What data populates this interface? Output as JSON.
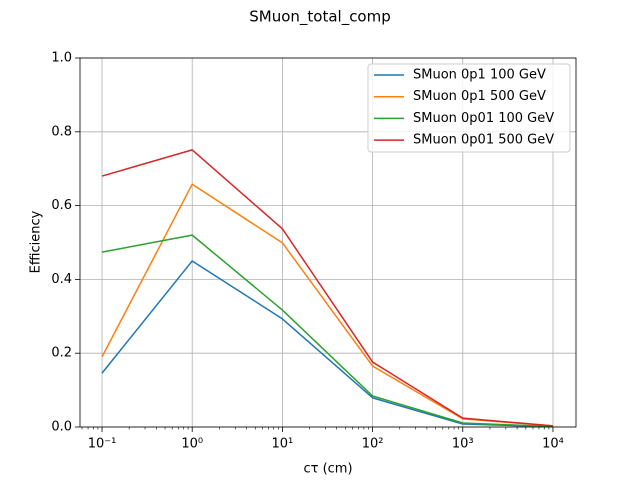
{
  "chart_data": {
    "type": "line",
    "title": "SMuon_total_comp",
    "xlabel": "cτ (cm)",
    "ylabel": "Efficiency",
    "xscale": "log",
    "grid": true,
    "legend": "upper right",
    "x": [
      0.1,
      1,
      10,
      100,
      1000,
      10000
    ],
    "series": [
      {
        "name": "SMuon 0p1 100 GeV",
        "color": "#1f77b4",
        "values": [
          0.146,
          0.45,
          0.293,
          0.079,
          0.008,
          0.001
        ]
      },
      {
        "name": "SMuon 0p1 500 GeV",
        "color": "#ff7f0e",
        "values": [
          0.19,
          0.658,
          0.499,
          0.165,
          0.022,
          0.003
        ]
      },
      {
        "name": "SMuon 0p01 100 GeV",
        "color": "#2ca02c",
        "values": [
          0.474,
          0.52,
          0.317,
          0.084,
          0.011,
          0.001
        ]
      },
      {
        "name": "SMuon 0p01 500 GeV",
        "color": "#d62728",
        "values": [
          0.68,
          0.751,
          0.537,
          0.176,
          0.024,
          0.003
        ]
      }
    ],
    "xlim": [
      0.057,
      18000
    ],
    "xticks": [
      {
        "value": 0.1,
        "label": "10⁻¹"
      },
      {
        "value": 1,
        "label": "10⁰"
      },
      {
        "value": 10,
        "label": "10¹"
      },
      {
        "value": 100,
        "label": "10²"
      },
      {
        "value": 1000,
        "label": "10³"
      },
      {
        "value": 10000,
        "label": "10⁴"
      }
    ],
    "ylim": [
      0,
      1
    ],
    "yticks": [
      {
        "value": 0,
        "label": "0.0"
      },
      0.2,
      0.4,
      0.6,
      0.8,
      {
        "value": 1,
        "label": "1.0"
      }
    ]
  }
}
